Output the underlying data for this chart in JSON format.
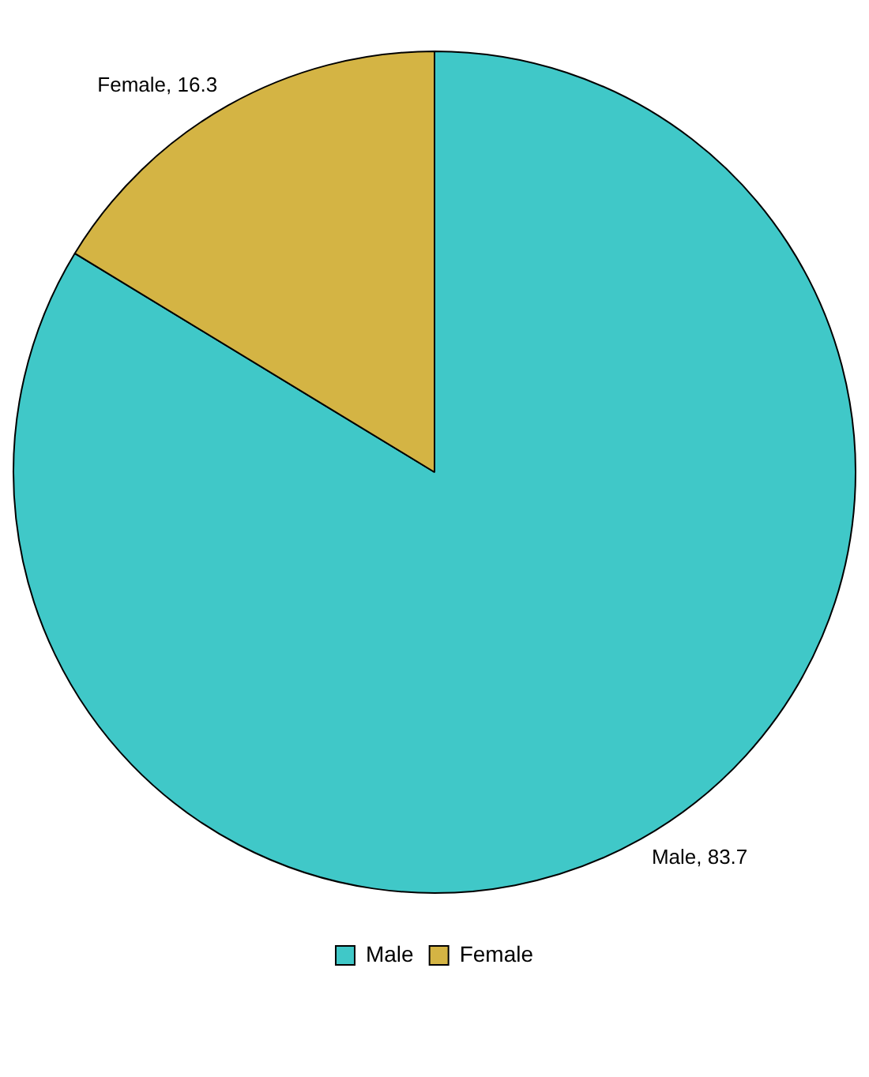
{
  "chart_data": {
    "type": "pie",
    "categories": [
      "Male",
      "Female"
    ],
    "values": [
      83.7,
      16.3
    ],
    "colors": [
      "#40c8c8",
      "#d4b444"
    ],
    "value_labels": [
      "Male, 83.7",
      "Female, 16.3"
    ],
    "legend": "bottom"
  }
}
